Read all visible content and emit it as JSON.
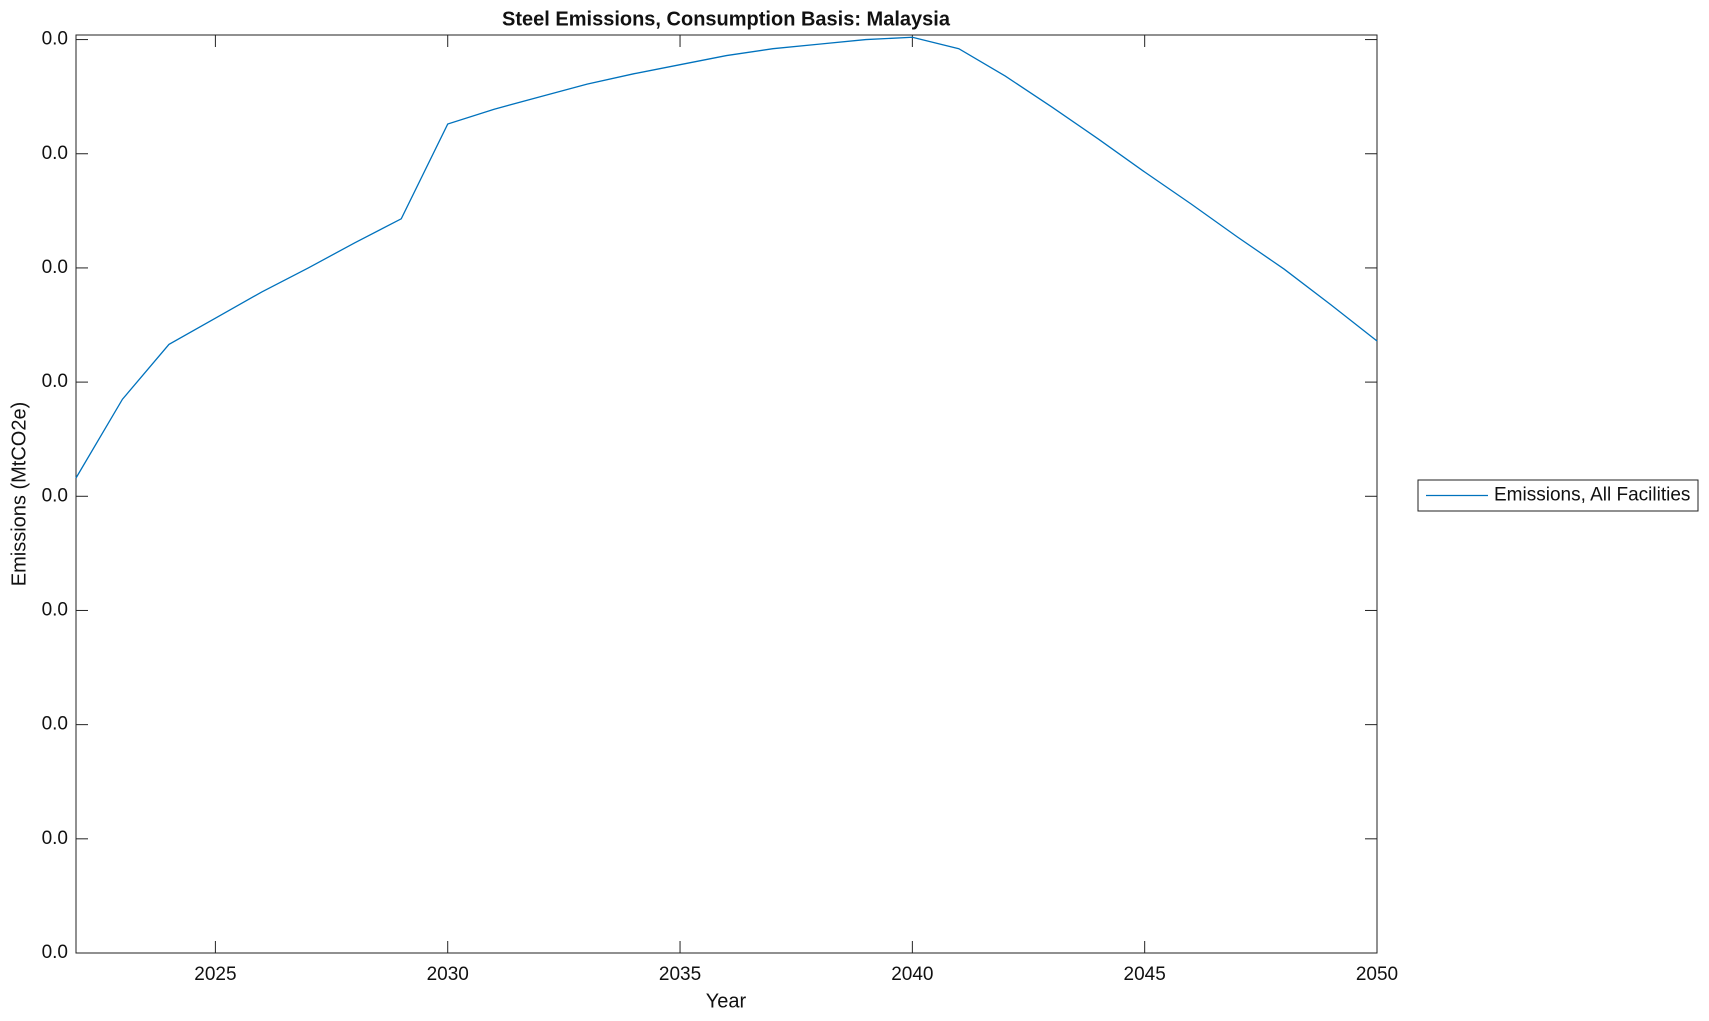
{
  "chart_data": {
    "type": "line",
    "title": "Steel Emissions, Consumption Basis: Malaysia",
    "x_label": "Year",
    "y_label": "Emissions (MtCO2e)",
    "x": [
      2022,
      2023,
      2024,
      2025,
      2026,
      2027,
      2028,
      2029,
      2030,
      2031,
      2032,
      2033,
      2034,
      2035,
      2036,
      2037,
      2038,
      2039,
      2040,
      2041,
      2042,
      2043,
      2044,
      2045,
      2046,
      2047,
      2048,
      2049,
      2050
    ],
    "series": [
      {
        "name": "Emissions, All Facilities",
        "color": "#0072bd",
        "values": [
          0.00416,
          0.00485,
          0.00533,
          0.00556,
          0.00579,
          0.006,
          0.00622,
          0.00643,
          0.00726,
          0.00739,
          0.0075,
          0.00761,
          0.0077,
          0.00778,
          0.00786,
          0.00792,
          0.00796,
          0.008,
          0.00802,
          0.00792,
          0.00768,
          0.00741,
          0.00713,
          0.00684,
          0.00656,
          0.00627,
          0.00599,
          0.00568,
          0.00536
        ]
      }
    ],
    "xlim": [
      2022,
      2050
    ],
    "xticks": [
      2025,
      2030,
      2035,
      2040,
      2045,
      2050
    ],
    "ylim": [
      0,
      0.00804
    ],
    "yticks": [
      {
        "value": 0,
        "label": "0.0"
      },
      {
        "value": 0.001,
        "label": "0.0"
      },
      {
        "value": 0.002,
        "label": "0.0"
      },
      {
        "value": 0.003,
        "label": "0.0"
      },
      {
        "value": 0.004,
        "label": "0.0"
      },
      {
        "value": 0.005,
        "label": "0.0"
      },
      {
        "value": 0.006,
        "label": "0.0"
      },
      {
        "value": 0.007,
        "label": "0.0"
      },
      {
        "value": 0.008,
        "label": "0.0"
      }
    ],
    "grid": false,
    "legend_position": "outside-right"
  }
}
